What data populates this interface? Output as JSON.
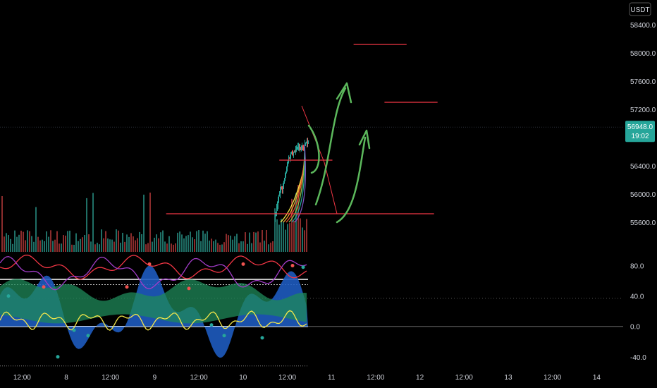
{
  "chart_data": {
    "type": "candlestick",
    "price_axis": {
      "unit": "USDT",
      "tick_labels": [
        "58400.0",
        "58000.0",
        "57600.0",
        "57200.0",
        "56400.0",
        "56000.0",
        "55600.0"
      ],
      "tick_values": [
        58400,
        58000,
        57600,
        57200,
        56400,
        56000,
        55600
      ],
      "range": [
        55250,
        58650
      ]
    },
    "last_price": {
      "value": "56948.0",
      "countdown": "19:02",
      "price": 56948
    },
    "time_axis": {
      "labels": [
        "12:00",
        "8",
        "12:00",
        "9",
        "12:00",
        "10",
        "12:00",
        "11",
        "12:00",
        "12",
        "12:00",
        "13",
        "12:00",
        "14"
      ],
      "positions": [
        0.25,
        0.75,
        1.25,
        1.75,
        2.25,
        2.75,
        3.25,
        3.75,
        4.25,
        4.75,
        5.25,
        5.75,
        6.25,
        6.75
      ],
      "range": [
        0,
        7.05
      ]
    },
    "oscillator_axis": {
      "tick_labels": [
        "80.0",
        "40.0",
        "0.0",
        "-40.0"
      ],
      "tick_values": [
        80,
        40,
        0,
        -40
      ],
      "range": [
        -55,
        100
      ],
      "levels": [
        62,
        55,
        37,
        0,
        -52
      ]
    },
    "price_annotations": [
      {
        "kind": "horizontal",
        "price": 58120,
        "t_start": 4.0,
        "t_end": 4.6,
        "color": "#f23645"
      },
      {
        "kind": "horizontal",
        "price": 57300,
        "t_start": 4.35,
        "t_end": 4.95,
        "color": "#f23645"
      },
      {
        "kind": "horizontal",
        "price": 56480,
        "t_start": 3.16,
        "t_end": 3.76,
        "color": "#f23645"
      },
      {
        "kind": "horizontal",
        "price": 55720,
        "t_start": 1.88,
        "t_end": 4.91,
        "color": "#f23645"
      }
    ],
    "series_colors": {
      "up": "#26a69a",
      "down": "#ef5350",
      "osc_blue": "#1e5bbf",
      "osc_green": "#1f8a5a",
      "yellow_line": "#f5e84a",
      "red_line": "#f23645",
      "purple_line": "#a23cc8",
      "arrow": "#5cb85c"
    }
  }
}
